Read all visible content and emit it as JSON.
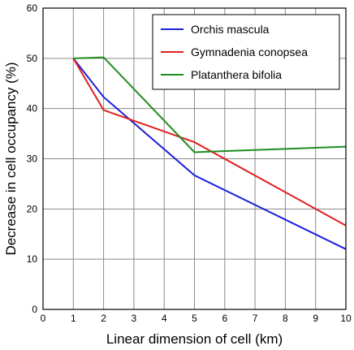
{
  "chart_data": {
    "type": "line",
    "title": "",
    "xlabel": "Linear dimension of cell (km)",
    "ylabel": "Decrease in cell occupancy (%)",
    "xlim": [
      0,
      10
    ],
    "ylim": [
      0,
      60
    ],
    "xticks": [
      "0",
      "1",
      "2",
      "3",
      "4",
      "5",
      "6",
      "7",
      "8",
      "9",
      "10"
    ],
    "yticks": [
      "0",
      "10",
      "20",
      "30",
      "40",
      "50",
      "60"
    ],
    "grid": true,
    "legend_position": "top-right",
    "series": [
      {
        "name": "Orchis mascula",
        "color": "#1f1fdc",
        "x": [
          1,
          2,
          5,
          10
        ],
        "y": [
          50,
          42.3,
          26.7,
          12
        ]
      },
      {
        "name": "Gymnadenia conopsea",
        "color": "#e02020",
        "x": [
          1,
          2,
          5,
          10
        ],
        "y": [
          50,
          39.7,
          33.3,
          16.7
        ]
      },
      {
        "name": "Platanthera bifolia",
        "color": "#1e8c1e",
        "x": [
          1,
          2,
          5,
          10
        ],
        "y": [
          50,
          50.2,
          31.3,
          32.4
        ]
      }
    ]
  }
}
